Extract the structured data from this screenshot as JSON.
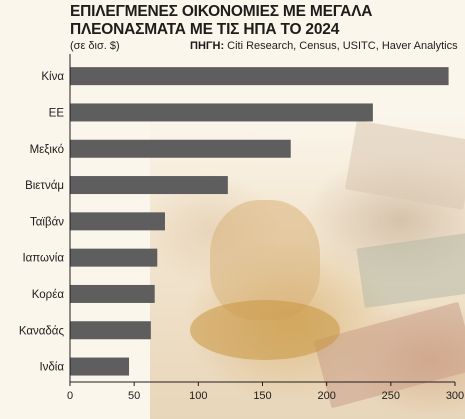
{
  "title_line1": "ΕΠΙΛΕΓΜΕΝΕΣ ΟΙΚΟΝΟΜΙΕΣ ΜΕ ΜΕΓΑΛΑ",
  "title_line2": "ΠΛΕΟΝΑΣΜΑΤΑ ΜΕ ΤΙΣ ΗΠΑ ΤΟ 2024",
  "unit": "(σε δισ. $)",
  "source_label": "ΠΗΓΗ:",
  "source_text": " Citi Research, Census, USITC, Haver Analytics",
  "colors": {
    "bar": "#5e5e5e",
    "axis": "#1d1d1b",
    "background": "#fbf6ec"
  },
  "chart_data": {
    "type": "bar",
    "orientation": "horizontal",
    "title": "ΕΠΙΛΕΓΜΕΝΕΣ ΟΙΚΟΝΟΜΙΕΣ ΜΕ ΜΕΓΑΛΑ ΠΛΕΟΝΑΣΜΑΤΑ ΜΕ ΤΙΣ ΗΠΑ ΤΟ 2024",
    "categories": [
      "Κίνα",
      "ΕΕ",
      "Μεξικό",
      "Βιετνάμ",
      "Ταϊβάν",
      "Ιαπωνία",
      "Κορέα",
      "Καναδάς",
      "Ινδία"
    ],
    "values": [
      295,
      236,
      172,
      123,
      74,
      68,
      66,
      63,
      46
    ],
    "xlim": [
      0,
      300
    ],
    "xticks": [
      "0",
      "50",
      "100",
      "150",
      "200",
      "250",
      "300"
    ],
    "grid": false
  }
}
